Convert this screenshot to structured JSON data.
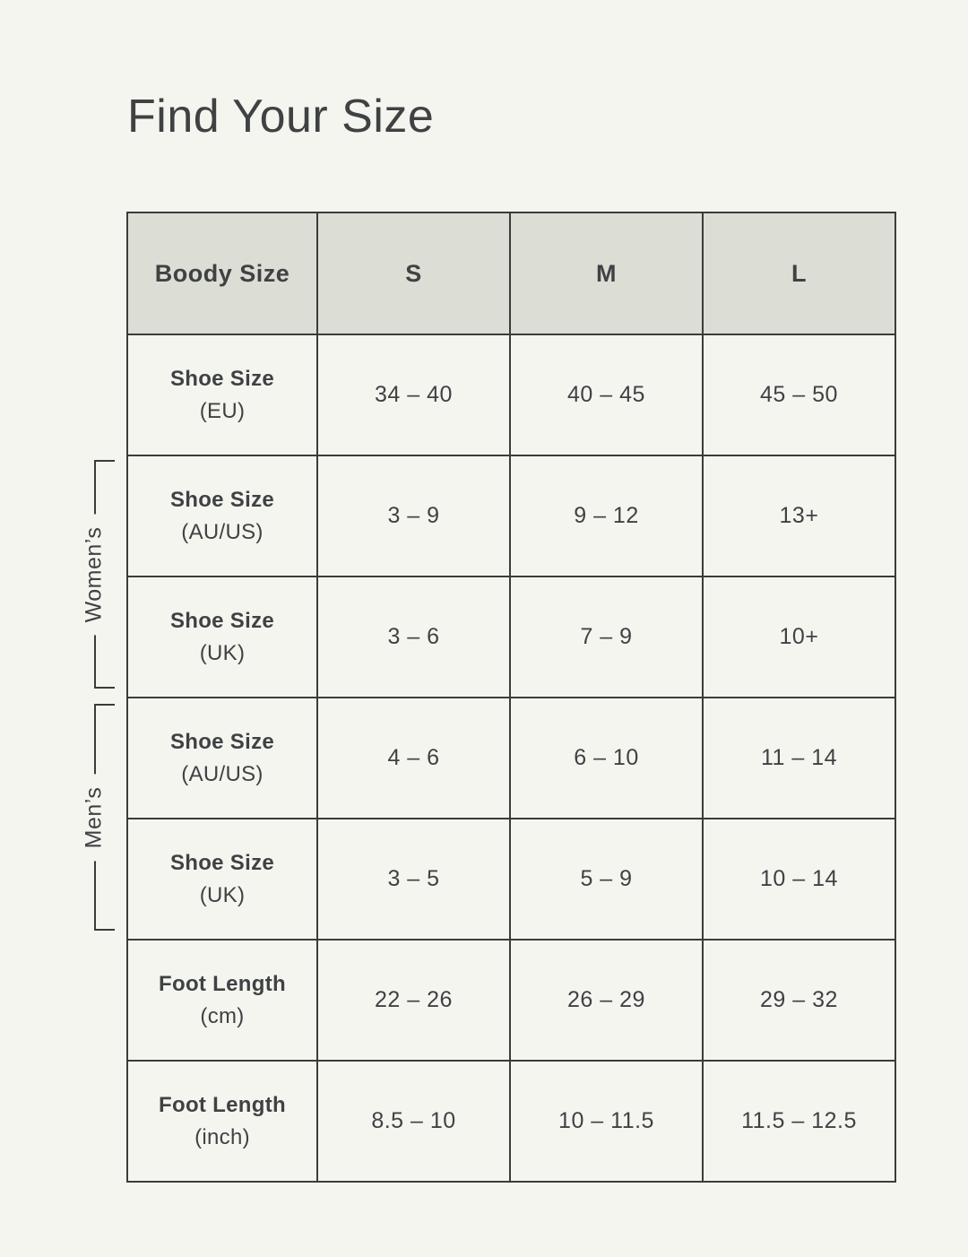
{
  "page": {
    "title": "Find Your Size"
  },
  "groups": {
    "womens": "Women’s",
    "mens": "Men’s"
  },
  "chart_data": {
    "type": "table",
    "title": "Find Your Size",
    "columns": [
      "Boody Size",
      "S",
      "M",
      "L"
    ],
    "rows": [
      {
        "label": "Shoe Size",
        "unit": "(EU)",
        "group": "",
        "values": [
          "34 – 40",
          "40 – 45",
          "45 – 50"
        ]
      },
      {
        "label": "Shoe Size",
        "unit": "(AU/US)",
        "group": "Women’s",
        "values": [
          "3 – 9",
          "9 – 12",
          "13+"
        ]
      },
      {
        "label": "Shoe Size",
        "unit": "(UK)",
        "group": "Women’s",
        "values": [
          "3 – 6",
          "7 – 9",
          "10+"
        ]
      },
      {
        "label": "Shoe Size",
        "unit": "(AU/US)",
        "group": "Men’s",
        "values": [
          "4 – 6",
          "6 – 10",
          "11 – 14"
        ]
      },
      {
        "label": "Shoe Size",
        "unit": "(UK)",
        "group": "Men’s",
        "values": [
          "3 – 5",
          "5 – 9",
          "10 – 14"
        ]
      },
      {
        "label": "Foot Length",
        "unit": "(cm)",
        "group": "",
        "values": [
          "22 – 26",
          "26 – 29",
          "29 – 32"
        ]
      },
      {
        "label": "Foot Length",
        "unit": "(inch)",
        "group": "",
        "values": [
          "8.5 – 10",
          "10 – 11.5",
          "11.5 – 12.5"
        ]
      }
    ]
  },
  "colors": {
    "page_bg": "#F5F5F0",
    "header_bg": "#DCDDD5",
    "border": "#3B3C39",
    "text": "#3F4243"
  }
}
